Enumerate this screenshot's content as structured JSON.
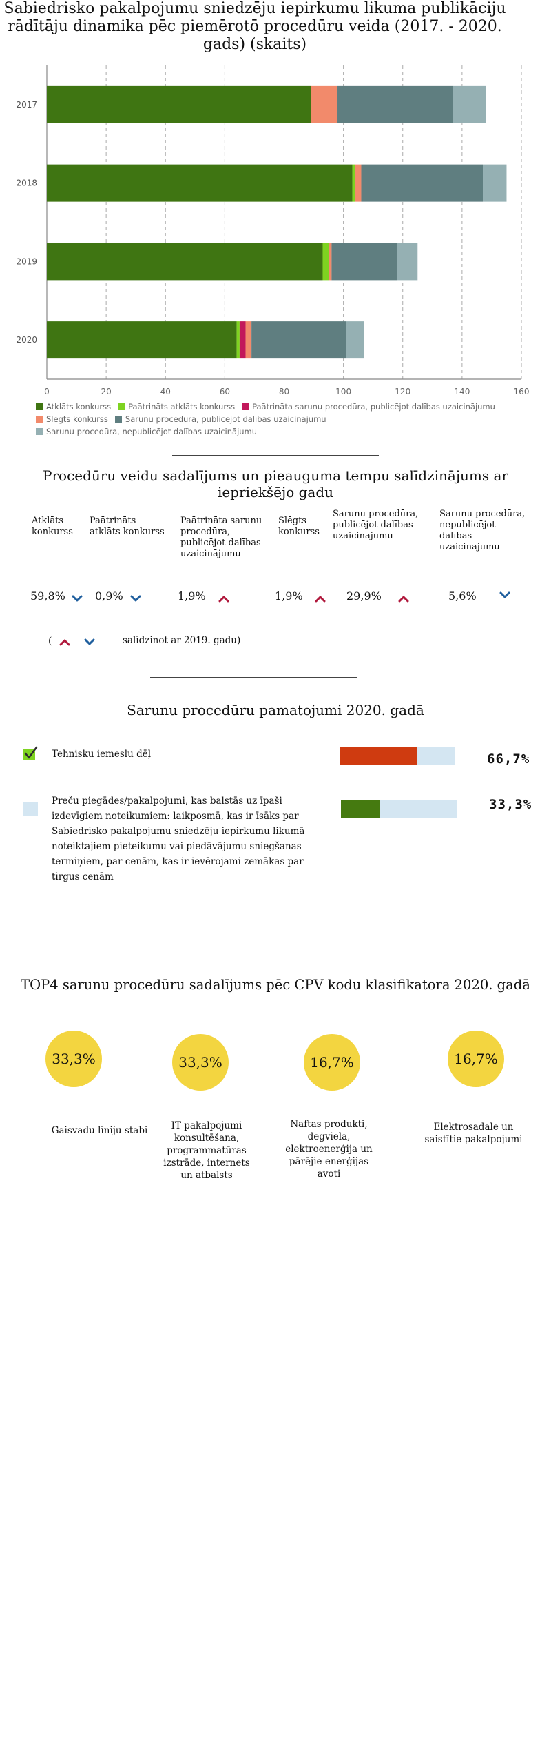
{
  "chart_data": {
    "type": "bar",
    "orientation": "horizontal",
    "stacked": true,
    "title": "Sabiedrisko pakalpojumu sniedzēju iepirkumu likuma publikāciju rādītāju dinamika pēc piemērotō procedūru veida (2017. - 2020. gads) (skaits)",
    "categories": [
      "2017",
      "2018",
      "2019",
      "2020"
    ],
    "series": [
      {
        "name": "Atklāts konkurss",
        "color": "#3f7512",
        "values": [
          89,
          103,
          93,
          64
        ]
      },
      {
        "name": "Paātrināts atklāts konkurss",
        "color": "#7ed321",
        "values": [
          0,
          1,
          2,
          1
        ]
      },
      {
        "name": "Paātrināta sarunu procedūra, publicējot dalības uzaicinājumu",
        "color": "#c2185b",
        "values": [
          0,
          0,
          0,
          2
        ]
      },
      {
        "name": "Slēgts konkurss",
        "color": "#f28a6b",
        "values": [
          9,
          2,
          1,
          2
        ]
      },
      {
        "name": "Sarunu procedūra, publicējot dalības uzaicinājumu",
        "color": "#5f7e80",
        "values": [
          39,
          41,
          22,
          32
        ]
      },
      {
        "name": "Sarunu procedūra, nepublicējot dalības uzaicinājumu",
        "color": "#95b0b3",
        "values": [
          11,
          8,
          7,
          6
        ]
      }
    ],
    "xlim": [
      0,
      160
    ],
    "xticks": [
      "0",
      "20",
      "40",
      "60",
      "80",
      "100",
      "120",
      "140",
      "160"
    ],
    "grid": true,
    "legend_position": "bottom"
  },
  "section2": {
    "title": "Procedūru veidu sadalījums un pieauguma tempu salīdzinājums ar iepriekšējo gadu",
    "columns": [
      {
        "label": "Atklāts konkurss",
        "pct": "59,8%",
        "trend": "down"
      },
      {
        "label": "Paātrināts atklāts konkurss",
        "pct": "0,9%",
        "trend": "down"
      },
      {
        "label": "Paātrināta sarunu procedūra, publicējot dalības uzaicinājumu",
        "pct": "1,9%",
        "trend": "up"
      },
      {
        "label": "Slēgts konkurss",
        "pct": "1,9%",
        "trend": "up"
      },
      {
        "label": "Sarunu procedūra, publicējot dalības uzaicinājumu",
        "pct": "29,9%",
        "trend": "up"
      },
      {
        "label": "Sarunu procedūra, nepublicējot dalības uzaicinājumu",
        "pct": "5,6%",
        "trend": "down"
      }
    ],
    "legend_open": "(",
    "legend_note": "salīdzinot ar 2019. gadu)",
    "colors": {
      "up": "#b0183c",
      "down": "#1f5f9e"
    }
  },
  "section3": {
    "title": "Sarunu procedūru pamatojumi 2020. gadā",
    "reasons": [
      {
        "text": "Tehnisku iemeslu dēļ",
        "pct": "66,7%",
        "value": 0.667,
        "color": "#cf3b10",
        "icon": "check-icon",
        "icon_color": "#7ed321"
      },
      {
        "text": "Preču piegādes/pakalpojumi, kas balstās uz īpaši izdevīgiem noteikumiem: laikposmā, kas ir īsāks par Sabiedrisko pakalpojumu sniedzēju iepirkumu likumā noteiktajiem pieteikumu vai piedāvājumu sniegšanas termiņiem, par cenām, kas ir ievērojami zemākas par tirgus cenām",
        "pct": "33,3%",
        "value": 0.333,
        "color": "#457a10",
        "icon": "box-icon",
        "icon_color": "#d4e6f2"
      }
    ]
  },
  "section4": {
    "title": "TOP4 sarunu procedūru sadalījums pēc CPV kodu klasifikatora 2020. gadā",
    "items": [
      {
        "pct": "33,3%",
        "label": "Gaisvadu līniju stabi"
      },
      {
        "pct": "33,3%",
        "label": "IT pakalpojumi konsultēšana, programmatūras izstrāde, internets un atbalsts"
      },
      {
        "pct": "16,7%",
        "label": "Naftas produkti, degviela, elektroenerģija un pārējie enerģijas avoti"
      },
      {
        "pct": "16,7%",
        "label": "Elektrosadale un saistītie pakalpojumi"
      }
    ],
    "circle_color": "#f3d540"
  }
}
